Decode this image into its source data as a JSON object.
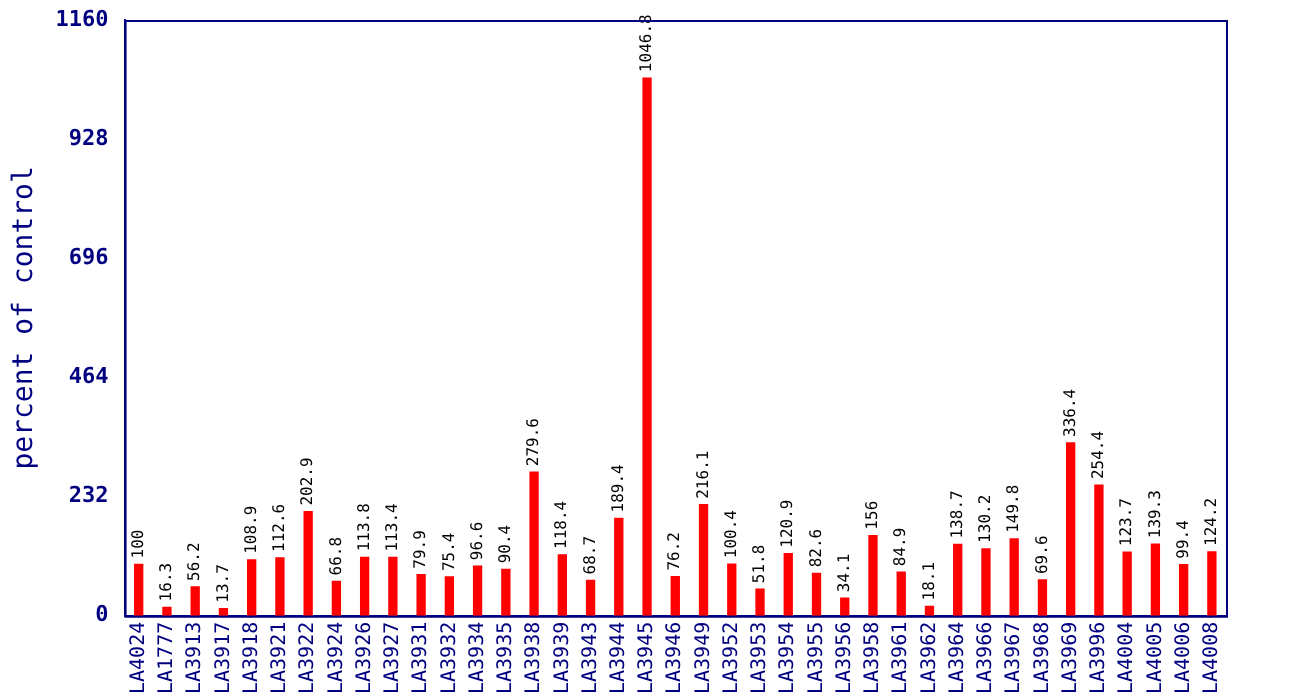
{
  "chart_data": {
    "type": "bar",
    "ylabel": "percent of control",
    "categories": [
      "LA4024",
      "LA1777",
      "LA3913",
      "LA3917",
      "LA3918",
      "LA3921",
      "LA3922",
      "LA3924",
      "LA3926",
      "LA3927",
      "LA3931",
      "LA3932",
      "LA3934",
      "LA3935",
      "LA3938",
      "LA3939",
      "LA3943",
      "LA3944",
      "LA3945",
      "LA3946",
      "LA3949",
      "LA3952",
      "LA3953",
      "LA3954",
      "LA3955",
      "LA3956",
      "LA3958",
      "LA3961",
      "LA3962",
      "LA3964",
      "LA3966",
      "LA3967",
      "LA3968",
      "LA3969",
      "LA3996",
      "LA4004",
      "LA4005",
      "LA4006",
      "LA4008"
    ],
    "values": [
      100,
      16.3,
      56.2,
      13.7,
      108.9,
      112.6,
      202.9,
      66.8,
      113.8,
      113.4,
      79.9,
      75.4,
      96.6,
      90.4,
      279.6,
      118.4,
      68.7,
      189.4,
      1046.8,
      76.2,
      216.1,
      100.4,
      51.8,
      120.9,
      82.6,
      34.1,
      156,
      84.9,
      18.1,
      138.7,
      130.2,
      149.8,
      69.6,
      336.4,
      254.4,
      123.7,
      139.3,
      99.4,
      124.2
    ],
    "color": "#ff0000",
    "ylim": [
      0,
      1160
    ],
    "yticks": [
      0,
      232,
      464,
      696,
      928,
      1160
    ],
    "grid": false,
    "legend": false,
    "data_labels": true
  }
}
